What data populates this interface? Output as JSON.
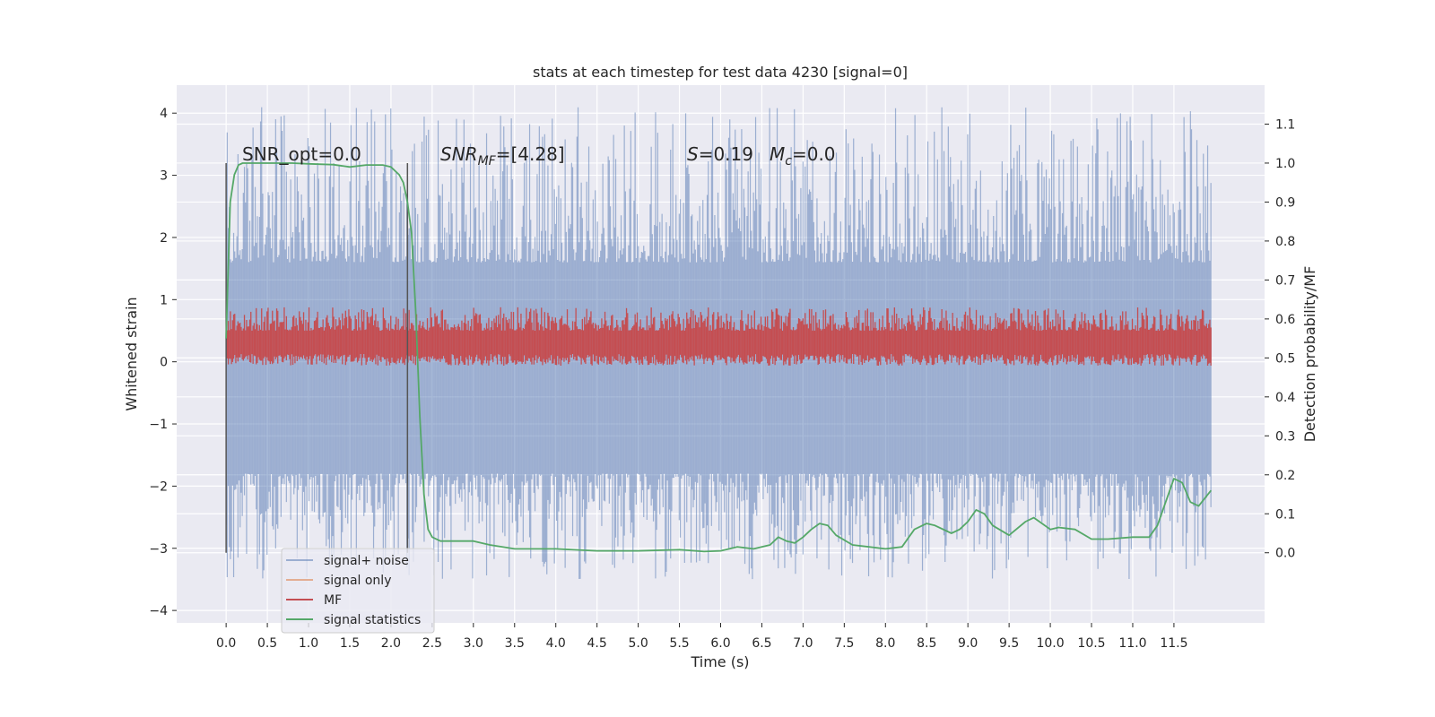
{
  "chart_data": {
    "type": "line",
    "title": "stats at each timestep for test data 4230 [signal=0]",
    "xlabel": "Time (s)",
    "ylabel": "Whitened strain",
    "y2label": "Detection probability/MF",
    "xlim": [
      -0.6,
      12.6
    ],
    "ylim": [
      -4.2,
      4.45
    ],
    "y2lim": [
      -0.18,
      1.2
    ],
    "xticks": [
      0.0,
      0.5,
      1.0,
      1.5,
      2.0,
      2.5,
      3.0,
      3.5,
      4.0,
      4.5,
      5.0,
      5.5,
      6.0,
      6.5,
      7.0,
      7.5,
      8.0,
      8.5,
      9.0,
      9.5,
      10.0,
      10.5,
      11.0,
      11.5
    ],
    "yticks": [
      -4,
      -3,
      -2,
      -1,
      0,
      1,
      2,
      3,
      4
    ],
    "y2ticks": [
      0.0,
      0.1,
      0.2,
      0.3,
      0.4,
      0.5,
      0.6,
      0.7,
      0.8,
      0.9,
      1.0,
      1.1
    ],
    "grid": true,
    "legend_position": "bottom-left",
    "colors": {
      "background": "#eaeaf2",
      "grid": "#ffffff",
      "signal_noise": "#4c72b0",
      "signal_only": "#dd8452",
      "mf": "#c44e52",
      "statistics": "#55a868",
      "vline": "#555555"
    },
    "annotations": {
      "snr_opt": "SNR_opt=0.0",
      "snr_mf_prefix": "SNR",
      "snr_mf_sub": "MF",
      "snr_mf_value": "=[4.28]",
      "s_prefix": "S",
      "s_value": "=0.19",
      "mc_prefix": "M",
      "mc_sub": "c",
      "mc_value": "=0.0"
    },
    "vlines": [
      {
        "x": 0.0,
        "y2_range": [
          0.0,
          1.0
        ]
      },
      {
        "x": 2.2,
        "y2_range": [
          0.0,
          1.0
        ]
      }
    ],
    "series": [
      {
        "name": "signal+ noise",
        "axis": "left",
        "x_range": [
          0.0,
          11.95
        ],
        "envelope": {
          "core_low": -1.8,
          "core_high": 1.6,
          "peak_low": -3.5,
          "peak_high": 4.1
        }
      },
      {
        "name": "signal only",
        "axis": "left",
        "values": [
          0,
          0
        ]
      },
      {
        "name": "MF",
        "axis": "right",
        "x_range": [
          0.0,
          11.95
        ],
        "envelope": {
          "low": 0.48,
          "high": 0.62,
          "peak_high": 0.63
        }
      },
      {
        "name": "signal statistics",
        "axis": "right",
        "x": [
          0.0,
          0.05,
          0.1,
          0.15,
          0.2,
          0.3,
          0.5,
          0.8,
          1.0,
          1.3,
          1.5,
          1.7,
          1.9,
          2.0,
          2.1,
          2.15,
          2.2,
          2.25,
          2.3,
          2.35,
          2.4,
          2.45,
          2.5,
          2.6,
          2.8,
          3.0,
          3.2,
          3.5,
          4.0,
          4.5,
          5.0,
          5.5,
          5.8,
          6.0,
          6.2,
          6.4,
          6.6,
          6.7,
          6.8,
          6.9,
          7.0,
          7.1,
          7.2,
          7.3,
          7.4,
          7.6,
          7.8,
          8.0,
          8.2,
          8.35,
          8.5,
          8.6,
          8.8,
          8.9,
          9.0,
          9.1,
          9.2,
          9.3,
          9.5,
          9.7,
          9.8,
          9.9,
          10.0,
          10.1,
          10.3,
          10.5,
          10.7,
          11.0,
          11.2,
          11.3,
          11.4,
          11.5,
          11.6,
          11.7,
          11.8,
          11.95
        ],
        "values": [
          0.55,
          0.9,
          0.97,
          0.995,
          1.0,
          1.0,
          1.0,
          1.0,
          0.998,
          0.996,
          0.99,
          0.995,
          0.995,
          0.99,
          0.97,
          0.95,
          0.9,
          0.82,
          0.62,
          0.35,
          0.15,
          0.06,
          0.04,
          0.03,
          0.03,
          0.03,
          0.02,
          0.01,
          0.01,
          0.005,
          0.005,
          0.008,
          0.003,
          0.005,
          0.015,
          0.01,
          0.02,
          0.04,
          0.03,
          0.025,
          0.04,
          0.06,
          0.075,
          0.07,
          0.045,
          0.02,
          0.015,
          0.01,
          0.015,
          0.06,
          0.075,
          0.07,
          0.05,
          0.06,
          0.08,
          0.11,
          0.1,
          0.07,
          0.045,
          0.08,
          0.09,
          0.075,
          0.06,
          0.065,
          0.06,
          0.035,
          0.035,
          0.04,
          0.04,
          0.07,
          0.13,
          0.19,
          0.18,
          0.13,
          0.12,
          0.16
        ]
      }
    ],
    "legend": [
      "signal+ noise",
      "signal only",
      "MF",
      "signal statistics"
    ]
  }
}
